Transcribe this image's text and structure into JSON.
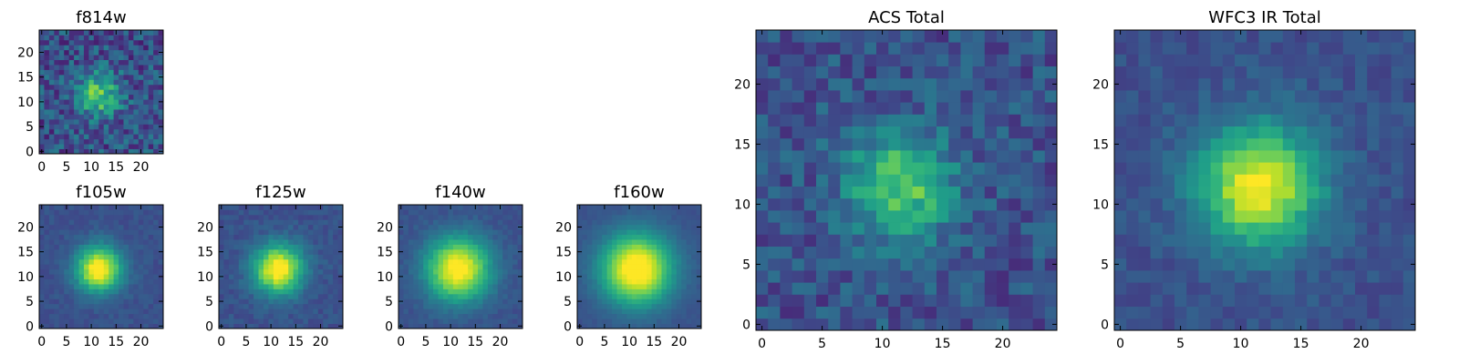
{
  "chart_data": [
    {
      "type": "heatmap",
      "title": "f814w",
      "xlim": [
        0,
        24
      ],
      "ylim": [
        0,
        24
      ],
      "x_ticks": [
        0,
        5,
        10,
        15,
        20
      ],
      "y_ticks": [
        0,
        5,
        10,
        15,
        20
      ],
      "colormap": "viridis",
      "source_sigma": 3.0,
      "source_peak": 0.5,
      "noise": 0.35
    },
    {
      "type": "heatmap",
      "title": "f105w",
      "xlim": [
        0,
        24
      ],
      "ylim": [
        0,
        24
      ],
      "x_ticks": [
        0,
        5,
        10,
        15,
        20
      ],
      "y_ticks": [
        0,
        5,
        10,
        15,
        20
      ],
      "colormap": "viridis",
      "source_sigma": 3.2,
      "source_peak": 0.8,
      "noise": 0.08
    },
    {
      "type": "heatmap",
      "title": "f125w",
      "xlim": [
        0,
        24
      ],
      "ylim": [
        0,
        24
      ],
      "x_ticks": [
        0,
        5,
        10,
        15,
        20
      ],
      "y_ticks": [
        0,
        5,
        10,
        15,
        20
      ],
      "colormap": "viridis",
      "source_sigma": 3.5,
      "source_peak": 0.8,
      "noise": 0.1
    },
    {
      "type": "heatmap",
      "title": "f140w",
      "xlim": [
        0,
        24
      ],
      "ylim": [
        0,
        24
      ],
      "x_ticks": [
        0,
        5,
        10,
        15,
        20
      ],
      "y_ticks": [
        0,
        5,
        10,
        15,
        20
      ],
      "colormap": "viridis",
      "source_sigma": 4.5,
      "source_peak": 0.8,
      "noise": 0.07
    },
    {
      "type": "heatmap",
      "title": "f160w",
      "xlim": [
        0,
        24
      ],
      "ylim": [
        0,
        24
      ],
      "x_ticks": [
        0,
        5,
        10,
        15,
        20
      ],
      "y_ticks": [
        0,
        5,
        10,
        15,
        20
      ],
      "colormap": "viridis",
      "source_sigma": 5.0,
      "source_peak": 0.85,
      "noise": 0.04
    },
    {
      "type": "heatmap",
      "title": "ACS Total",
      "xlim": [
        0,
        24
      ],
      "ylim": [
        0,
        24
      ],
      "x_ticks": [
        0,
        5,
        10,
        15,
        20
      ],
      "y_ticks": [
        0,
        5,
        10,
        15,
        20
      ],
      "colormap": "viridis",
      "source_sigma": 3.2,
      "source_peak": 0.5,
      "noise": 0.25
    },
    {
      "type": "heatmap",
      "title": "WFC3 IR Total",
      "xlim": [
        0,
        24
      ],
      "ylim": [
        0,
        24
      ],
      "x_ticks": [
        0,
        5,
        10,
        15,
        20
      ],
      "y_ticks": [
        0,
        5,
        10,
        15,
        20
      ],
      "colormap": "viridis",
      "source_sigma": 3.5,
      "source_peak": 0.75,
      "noise": 0.12
    }
  ]
}
